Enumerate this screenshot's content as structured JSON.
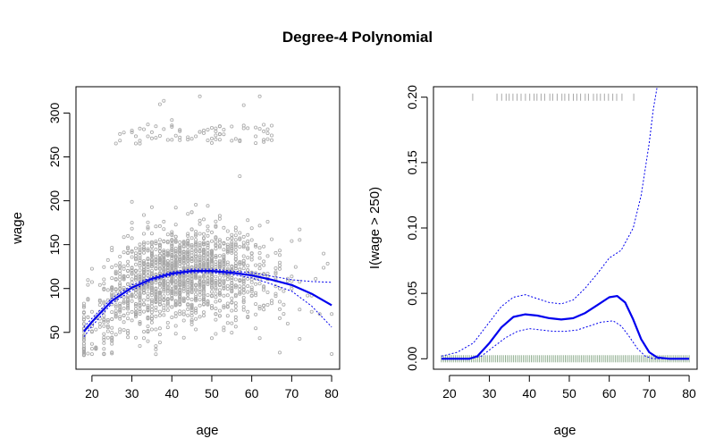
{
  "figure": {
    "title": "Degree-4 Polynomial"
  },
  "colors": {
    "points": "#a8a8a8",
    "fit": "#0000ee",
    "rug_left": "#a8a8a8",
    "rug_bottom": "#8fae8f"
  },
  "chart_data": [
    {
      "type": "scatter",
      "xlabel": "age",
      "ylabel": "wage",
      "xlim": [
        16,
        82
      ],
      "ylim": [
        8,
        330
      ],
      "x_ticks": [
        20,
        30,
        40,
        50,
        60,
        70,
        80
      ],
      "y_ticks": [
        50,
        100,
        150,
        200,
        250,
        300
      ],
      "x_tick_labels": [
        "20",
        "30",
        "40",
        "50",
        "60",
        "70",
        "80"
      ],
      "y_tick_labels": [
        "50",
        "100",
        "150",
        "200",
        "250",
        "300"
      ],
      "series": [
        {
          "kind": "fit",
          "x": [
            18,
            20,
            25,
            30,
            35,
            40,
            45,
            50,
            55,
            60,
            65,
            70,
            75,
            80
          ],
          "y": [
            51,
            62,
            86,
            101,
            111,
            117,
            120,
            120,
            118,
            115,
            110,
            104,
            94,
            81
          ]
        },
        {
          "kind": "upper_band",
          "x": [
            18,
            20,
            25,
            30,
            35,
            40,
            45,
            50,
            55,
            60,
            65,
            70,
            75,
            80
          ],
          "y": [
            56,
            66,
            89,
            104,
            113,
            119,
            122,
            122,
            120,
            118,
            114,
            110,
            108,
            107
          ]
        },
        {
          "kind": "lower_band",
          "x": [
            18,
            20,
            25,
            30,
            35,
            40,
            45,
            50,
            55,
            60,
            65,
            70,
            75,
            80
          ],
          "y": [
            45,
            57,
            83,
            98,
            109,
            115,
            118,
            118,
            116,
            112,
            105,
            97,
            80,
            56
          ]
        }
      ]
    },
    {
      "type": "line",
      "xlabel": "age",
      "ylabel": "I(wage > 250)",
      "xlim": [
        16,
        82
      ],
      "ylim": [
        -0.008,
        0.208
      ],
      "x_ticks": [
        20,
        30,
        40,
        50,
        60,
        70,
        80
      ],
      "y_ticks": [
        0,
        0.05,
        0.1,
        0.15,
        0.2
      ],
      "x_tick_labels": [
        "20",
        "30",
        "40",
        "50",
        "60",
        "70",
        "80"
      ],
      "y_tick_labels": [
        "0.00",
        "0.05",
        "0.10",
        "0.15",
        "0.20"
      ],
      "series": [
        {
          "kind": "fit",
          "x": [
            18,
            25,
            27,
            30,
            33,
            36,
            39,
            42,
            45,
            48,
            51,
            54,
            57,
            60,
            62,
            64,
            66,
            68,
            70,
            72,
            75,
            80
          ],
          "y": [
            0,
            0,
            0.002,
            0.012,
            0.024,
            0.032,
            0.034,
            0.033,
            0.031,
            0.03,
            0.031,
            0.035,
            0.041,
            0.047,
            0.048,
            0.043,
            0.03,
            0.015,
            0.005,
            0.001,
            0,
            0
          ]
        },
        {
          "kind": "upper_band",
          "x": [
            18,
            22,
            26,
            30,
            33,
            36,
            39,
            42,
            45,
            48,
            51,
            54,
            57,
            60,
            63,
            66,
            68,
            70,
            71,
            72
          ],
          "y": [
            0.002,
            0.005,
            0.012,
            0.028,
            0.04,
            0.047,
            0.049,
            0.046,
            0.043,
            0.042,
            0.045,
            0.054,
            0.065,
            0.077,
            0.083,
            0.1,
            0.125,
            0.165,
            0.19,
            0.208
          ]
        },
        {
          "kind": "lower_band",
          "x": [
            18,
            25,
            28,
            31,
            34,
            37,
            40,
            43,
            46,
            49,
            52,
            55,
            58,
            61,
            63,
            65,
            67,
            69,
            71,
            73,
            80
          ],
          "y": [
            0,
            0,
            0.002,
            0.009,
            0.016,
            0.021,
            0.023,
            0.022,
            0.021,
            0.021,
            0.022,
            0.025,
            0.028,
            0.029,
            0.025,
            0.017,
            0.008,
            0.002,
            0,
            0,
            0
          ]
        }
      ],
      "rug_top_ages": [
        26,
        32,
        33,
        34,
        35,
        36,
        37,
        38,
        39,
        40,
        41,
        42,
        43,
        44,
        45,
        46,
        47,
        48,
        49,
        50,
        51,
        52,
        53,
        54,
        55,
        56,
        57,
        58,
        59,
        60,
        61,
        62,
        63,
        66
      ],
      "rug_bottom_range": [
        18,
        80
      ]
    }
  ]
}
